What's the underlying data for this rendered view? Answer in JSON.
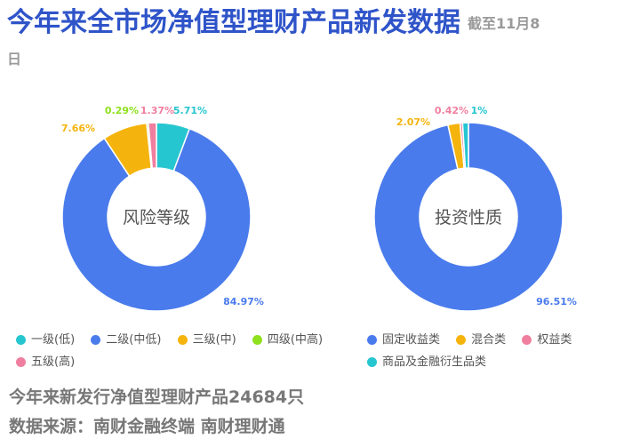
{
  "header": {
    "title": "今年来全市场净值型理财产品新发数据",
    "subtitle": "截至11月8日"
  },
  "chart_data": [
    {
      "type": "pie",
      "center_label": "风险等级",
      "series": [
        {
          "name": "一级(低)",
          "value": 5.71,
          "label": "5.71%",
          "color": "#26c6d0"
        },
        {
          "name": "二级(中低)",
          "value": 84.97,
          "label": "84.97%",
          "color": "#4a7bec"
        },
        {
          "name": "三级(中)",
          "value": 7.66,
          "label": "7.66%",
          "color": "#f5b40d"
        },
        {
          "name": "四级(中高)",
          "value": 0.29,
          "label": "0.29%",
          "color": "#8ee11c"
        },
        {
          "name": "五级(高)",
          "value": 1.37,
          "label": "1.37%",
          "color": "#f07f9f"
        }
      ]
    },
    {
      "type": "pie",
      "center_label": "投资性质",
      "series": [
        {
          "name": "固定收益类",
          "value": 96.51,
          "label": "96.51%",
          "color": "#4a7bec"
        },
        {
          "name": "混合类",
          "value": 2.07,
          "label": "2.07%",
          "color": "#f5b40d"
        },
        {
          "name": "权益类",
          "value": 0.42,
          "label": "0.42%",
          "color": "#f07f9f"
        },
        {
          "name": "商品及金融衍生品类",
          "value": 1,
          "label": "1%",
          "color": "#26c6d0"
        }
      ]
    }
  ],
  "footer": {
    "total": "今年来新发行净值型理财产品24684只",
    "source": "数据来源：南财金融终端 南财理财通"
  }
}
